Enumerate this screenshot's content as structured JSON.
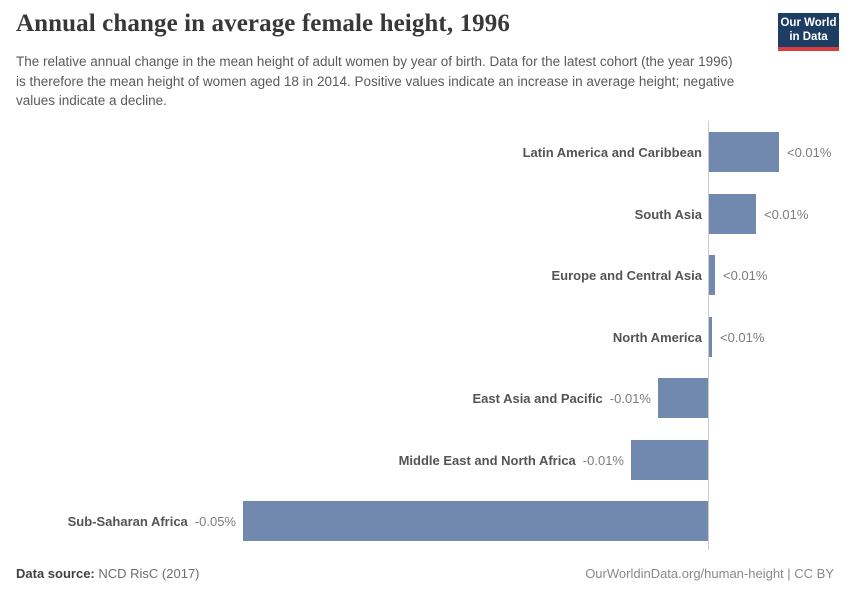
{
  "header": {
    "title": "Annual change in average female height, 1996",
    "subtitle": "The relative annual change in the mean height of adult women by year of birth. Data for the latest cohort (the year 1996) is therefore the mean height of women aged 18 in 2014. Positive values indicate an increase in average height; negative values indicate a decline.",
    "logo": {
      "line1": "Our World",
      "line2": "in Data"
    }
  },
  "chart_data": {
    "type": "bar",
    "orientation": "horizontal",
    "title": "Annual change in average female height, 1996",
    "unit": "%",
    "categories": [
      "Latin America and Caribbean",
      "South Asia",
      "Europe and Central Asia",
      "North America",
      "East Asia and Pacific",
      "Middle East and North Africa",
      "Sub-Saharan Africa"
    ],
    "values_percent": [
      0.0075,
      0.005,
      0.00065,
      0.0003,
      -0.0054,
      -0.0083,
      -0.05
    ],
    "value_labels": [
      "<0.01%",
      "<0.01%",
      "<0.01%",
      "<0.01%",
      "-0.01%",
      "-0.01%",
      "-0.05%"
    ],
    "xlim": [
      -0.05,
      0.0085
    ],
    "baseline_value": 0,
    "gridlines": false,
    "legend": "none"
  },
  "colors": {
    "bar": "#7189ae",
    "axis_line": "#cccccc",
    "category_label": "#545454",
    "value_label": "#7d7d7d",
    "title": "#383838",
    "subtitle": "#5a5a5a",
    "logo_bg": "#1d3d63",
    "logo_stripe": "#d93d3d"
  },
  "footer": {
    "source_label": "Data source:",
    "source_value": "NCD RisC (2017)",
    "credit": "OurWorldinData.org/human-height | CC BY"
  }
}
